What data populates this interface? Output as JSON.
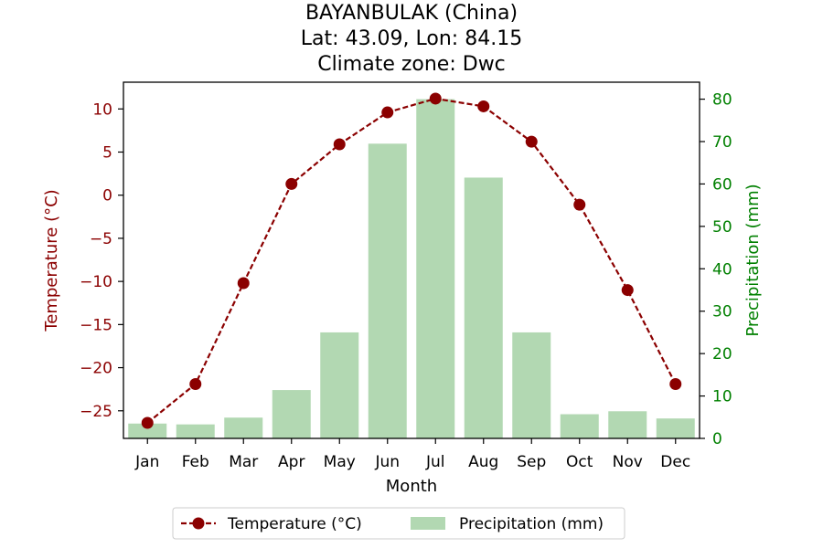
{
  "title_lines": [
    "BAYANBULAK (China)",
    "Lat: 43.09, Lon: 84.15",
    "Climate zone: Dwc"
  ],
  "colors": {
    "temperature": "#8b0000",
    "precipitation_bar": "#b2d8b2",
    "precipitation_axis": "#008000",
    "axis": "#000000"
  },
  "chart_data": {
    "type": "bar",
    "categories": [
      "Jan",
      "Feb",
      "Mar",
      "Apr",
      "May",
      "Jun",
      "Jul",
      "Aug",
      "Sep",
      "Oct",
      "Nov",
      "Dec"
    ],
    "xlabel": "Month",
    "series": [
      {
        "name": "Temperature (°C)",
        "type": "line",
        "axis": "left",
        "values": [
          -26.4,
          -21.9,
          -10.2,
          1.3,
          5.9,
          9.6,
          11.2,
          10.3,
          6.2,
          -1.1,
          -11.0,
          -21.9
        ]
      },
      {
        "name": "Precipitation (mm)",
        "type": "bar",
        "axis": "right",
        "values": [
          3.5,
          3.3,
          4.9,
          11.4,
          25.0,
          69.5,
          80.0,
          61.5,
          25.0,
          5.7,
          6.4,
          4.7
        ]
      }
    ],
    "ylabel_left": "Temperature (°C)",
    "ylabel_right": "Precipitation (mm)",
    "ylim_left": [
      -28.2,
      13.1
    ],
    "ylim_right": [
      0,
      84
    ],
    "yticks_left": [
      -25,
      -20,
      -15,
      -10,
      -5,
      0,
      5,
      10
    ],
    "yticks_right": [
      0,
      10,
      20,
      30,
      40,
      50,
      60,
      70,
      80
    ],
    "legend": {
      "placement": "bottom-center",
      "entries": [
        "Temperature (°C)",
        "Precipitation (mm)"
      ]
    },
    "grid": false
  }
}
